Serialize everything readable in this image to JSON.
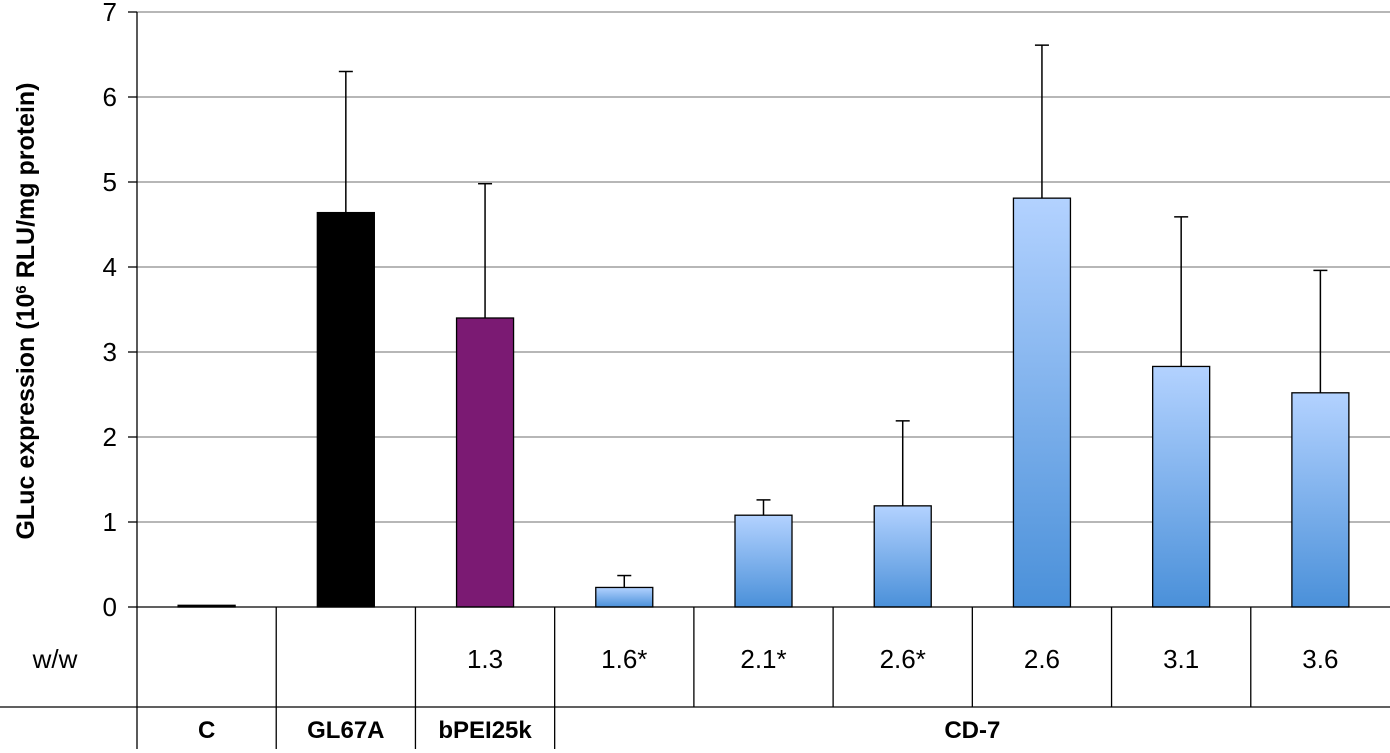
{
  "chart_data": {
    "type": "bar",
    "ylabel_main": "GLuc expression (10",
    "ylabel_sup": "6",
    "ylabel_rest": " RLU/mg protein)",
    "ylim": [
      0,
      7
    ],
    "yticks": [
      "0",
      "1",
      "2",
      "3",
      "4",
      "5",
      "6",
      "7"
    ],
    "grid": true,
    "row_label": "w/w",
    "bars": [
      {
        "ratio": "",
        "value": 0.02,
        "error": 0.0,
        "color": "#000000"
      },
      {
        "ratio": "",
        "value": 4.64,
        "error": 1.66,
        "color": "#000000"
      },
      {
        "ratio": "1.3",
        "value": 3.4,
        "error": 1.58,
        "color": "#7b1a73"
      },
      {
        "ratio": "1.6*",
        "value": 0.23,
        "error": 0.14,
        "color": "gradient"
      },
      {
        "ratio": "2.1*",
        "value": 1.08,
        "error": 0.18,
        "color": "gradient"
      },
      {
        "ratio": "2.6*",
        "value": 1.19,
        "error": 1.0,
        "color": "gradient"
      },
      {
        "ratio": "2.6",
        "value": 4.81,
        "error": 1.8,
        "color": "gradient"
      },
      {
        "ratio": "3.1",
        "value": 2.83,
        "error": 1.76,
        "color": "gradient"
      },
      {
        "ratio": "3.6",
        "value": 2.52,
        "error": 1.44,
        "color": "gradient"
      }
    ],
    "groups": [
      {
        "label": "C",
        "start": 0,
        "end": 0
      },
      {
        "label": "GL67A",
        "start": 1,
        "end": 1
      },
      {
        "label": "bPEI25k",
        "start": 2,
        "end": 2
      },
      {
        "label": "CD-7",
        "start": 3,
        "end": 8
      }
    ],
    "gradient_colors": [
      "#b3d2ff",
      "#4a90d9"
    ]
  }
}
